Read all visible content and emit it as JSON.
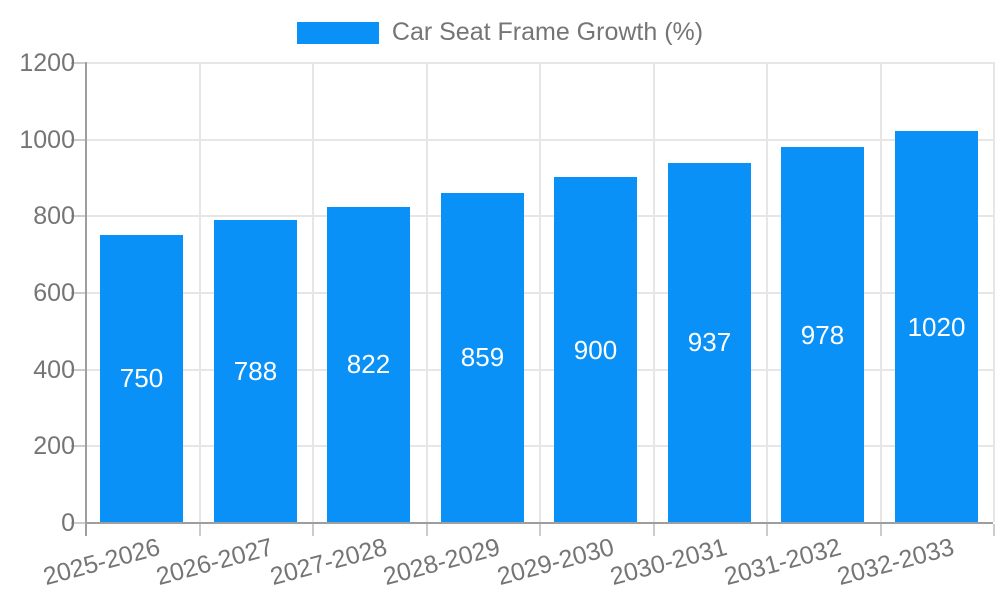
{
  "chart_data": {
    "type": "bar",
    "title": "",
    "categories": [
      "2025-2026",
      "2026-2027",
      "2027-2028",
      "2028-2029",
      "2029-2030",
      "2030-2031",
      "2031-2032",
      "2032-2033"
    ],
    "series": [
      {
        "name": "Car Seat Frame Growth (%)",
        "values": [
          750,
          788,
          822,
          859,
          900,
          937,
          978,
          1020
        ]
      }
    ],
    "value_labels": [
      "750",
      "788",
      "822",
      "859",
      "900",
      "937",
      "978",
      "1020"
    ],
    "ylim": [
      0,
      1200
    ],
    "yticks": [
      0,
      200,
      400,
      600,
      800,
      1000,
      1200
    ],
    "ytick_labels": [
      "0",
      "200",
      "400",
      "600",
      "800",
      "1000",
      "1200"
    ],
    "xlabel": "",
    "ylabel": "",
    "grid": "on",
    "legend_position": "top-center"
  },
  "colors": {
    "bar": "#0a91f7",
    "grid": "#e6e6e6",
    "axis": "#9e9e9e",
    "tick": "#cccccc",
    "axis_text": "#757575",
    "legend_text": "#757575",
    "value_label": "#ffffff",
    "background": "#ffffff"
  }
}
